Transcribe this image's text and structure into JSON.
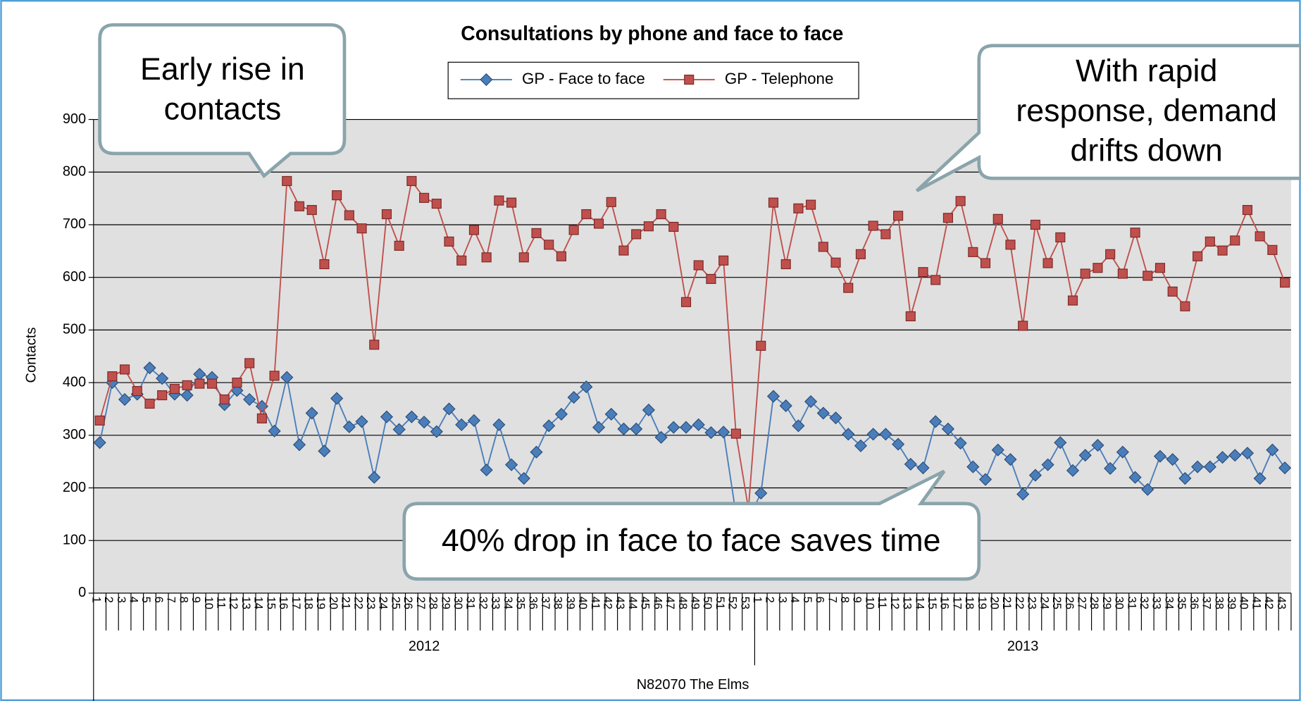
{
  "chart_data": {
    "type": "line",
    "title": "Consultations by phone and face to face",
    "y_label": "Contacts",
    "site": "N82070 The Elms",
    "groups": [
      {
        "label": "2012",
        "categories": [
          "1",
          "2",
          "3",
          "4",
          "5",
          "6",
          "7",
          "8",
          "9",
          "10",
          "11",
          "12",
          "13",
          "14",
          "15",
          "16",
          "17",
          "18",
          "19",
          "20",
          "21",
          "22",
          "23",
          "24",
          "25",
          "26",
          "27",
          "28",
          "29",
          "30",
          "31",
          "32",
          "33",
          "34",
          "35",
          "36",
          "37",
          "38",
          "39",
          "40",
          "41",
          "42",
          "43",
          "44",
          "45",
          "46",
          "47",
          "48",
          "49",
          "50",
          "51",
          "52",
          "53"
        ]
      },
      {
        "label": "2013",
        "categories": [
          "1",
          "2",
          "3",
          "4",
          "5",
          "6",
          "7",
          "8",
          "9",
          "10",
          "11",
          "12",
          "13",
          "14",
          "15",
          "16",
          "17",
          "18",
          "19",
          "20",
          "21",
          "22",
          "23",
          "24",
          "25",
          "26",
          "27",
          "28",
          "29",
          "30",
          "31",
          "32",
          "33",
          "34",
          "35",
          "36",
          "37",
          "38",
          "39",
          "40",
          "41",
          "42",
          "43"
        ]
      }
    ],
    "series": [
      {
        "name": "GP - Face to face",
        "color": "#4a7ebb",
        "marker": "diamond",
        "values": [
          286,
          400,
          368,
          378,
          428,
          408,
          378,
          376,
          416,
          410,
          358,
          385,
          368,
          355,
          308,
          410,
          282,
          342,
          270,
          370,
          316,
          326,
          220,
          335,
          311,
          335,
          325,
          307,
          350,
          320,
          328,
          234,
          320,
          244,
          218,
          268,
          318,
          340,
          372,
          392,
          315,
          340,
          312,
          312,
          348,
          296,
          315,
          315,
          320,
          305,
          306,
          150,
          140,
          190,
          374,
          356,
          318,
          364,
          342,
          333,
          302,
          280,
          302,
          302,
          283,
          245,
          238,
          326,
          312,
          285,
          240,
          216,
          272,
          254,
          188,
          224,
          244,
          286,
          233,
          262,
          281,
          237,
          268,
          220,
          197,
          260,
          254,
          218,
          240,
          240,
          258,
          262,
          266,
          218,
          272,
          238
        ]
      },
      {
        "name": "GP - Telephone",
        "color": "#c0504d",
        "marker": "square",
        "values": [
          328,
          412,
          425,
          384,
          360,
          376,
          388,
          395,
          398,
          398,
          368,
          400,
          437,
          332,
          413,
          783,
          735,
          728,
          625,
          756,
          718,
          693,
          472,
          720,
          660,
          783,
          751,
          740,
          668,
          632,
          690,
          638,
          746,
          742,
          638,
          684,
          662,
          640,
          690,
          720,
          702,
          743,
          651,
          682,
          697,
          720,
          696,
          553,
          623,
          597,
          632,
          303,
          160,
          470,
          742,
          625,
          731,
          738,
          658,
          628,
          580,
          644,
          698,
          682,
          717,
          526,
          610,
          595,
          713,
          745,
          648,
          627,
          711,
          662,
          508,
          700,
          627,
          676,
          556,
          607,
          618,
          644,
          607,
          685,
          603,
          618,
          573,
          545,
          640,
          668,
          651,
          670,
          728,
          678,
          652,
          590
        ]
      }
    ],
    "ylim": [
      0,
      900
    ],
    "yticks": [
      0,
      100,
      200,
      300,
      400,
      500,
      600,
      700,
      800,
      900
    ],
    "grid": true,
    "legend": "top",
    "annotations": [
      {
        "lines": [
          "Early rise in",
          "contacts"
        ]
      },
      {
        "lines": [
          "With rapid",
          "response, demand",
          "drifts down"
        ]
      },
      {
        "lines": [
          "40% drop in face to face saves time"
        ]
      }
    ]
  }
}
